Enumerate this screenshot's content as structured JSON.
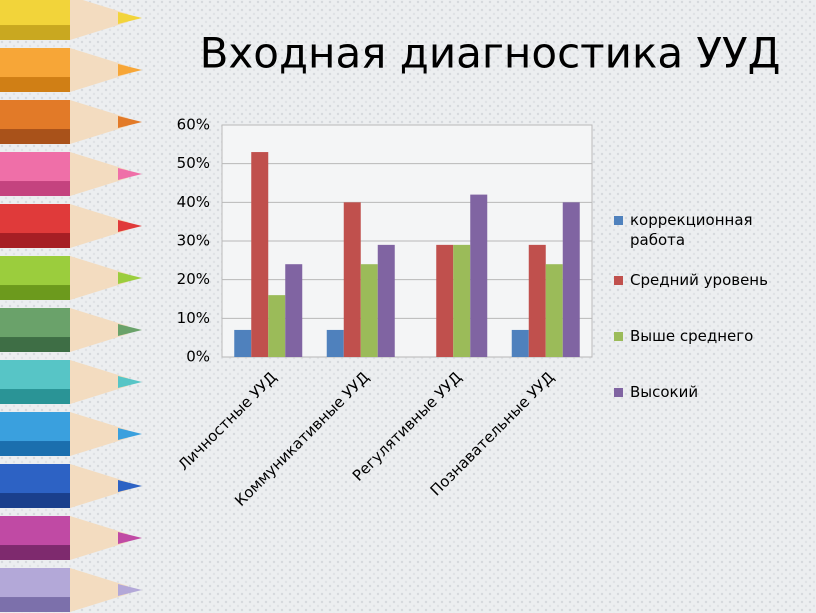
{
  "chart_data": {
    "type": "bar",
    "title": "Входная диагностика УУД",
    "categories": [
      "Личностные УУД",
      "Коммуникативные УУД",
      "Регулятивные УУД",
      "Познавательные УУД"
    ],
    "series": [
      {
        "name": "коррекционная работа",
        "color": "#4f81bd",
        "values": [
          7,
          7,
          0,
          7
        ]
      },
      {
        "name": "Средний уровень",
        "color": "#c0504d",
        "values": [
          53,
          40,
          29,
          29
        ]
      },
      {
        "name": "Выше среднего",
        "color": "#9bbb59",
        "values": [
          16,
          24,
          29,
          24
        ]
      },
      {
        "name": "Высокий",
        "color": "#8064a2",
        "values": [
          24,
          29,
          42,
          40
        ]
      }
    ],
    "ylim": [
      0,
      60
    ],
    "yticks": [
      {
        "value": 0,
        "label": "0%"
      },
      {
        "value": 10,
        "label": "10%"
      },
      {
        "value": 20,
        "label": "20%"
      },
      {
        "value": 30,
        "label": "30%"
      },
      {
        "value": 40,
        "label": "40%"
      },
      {
        "value": 50,
        "label": "50%"
      },
      {
        "value": 60,
        "label": "60%"
      }
    ],
    "grid": true,
    "legend": "right"
  }
}
